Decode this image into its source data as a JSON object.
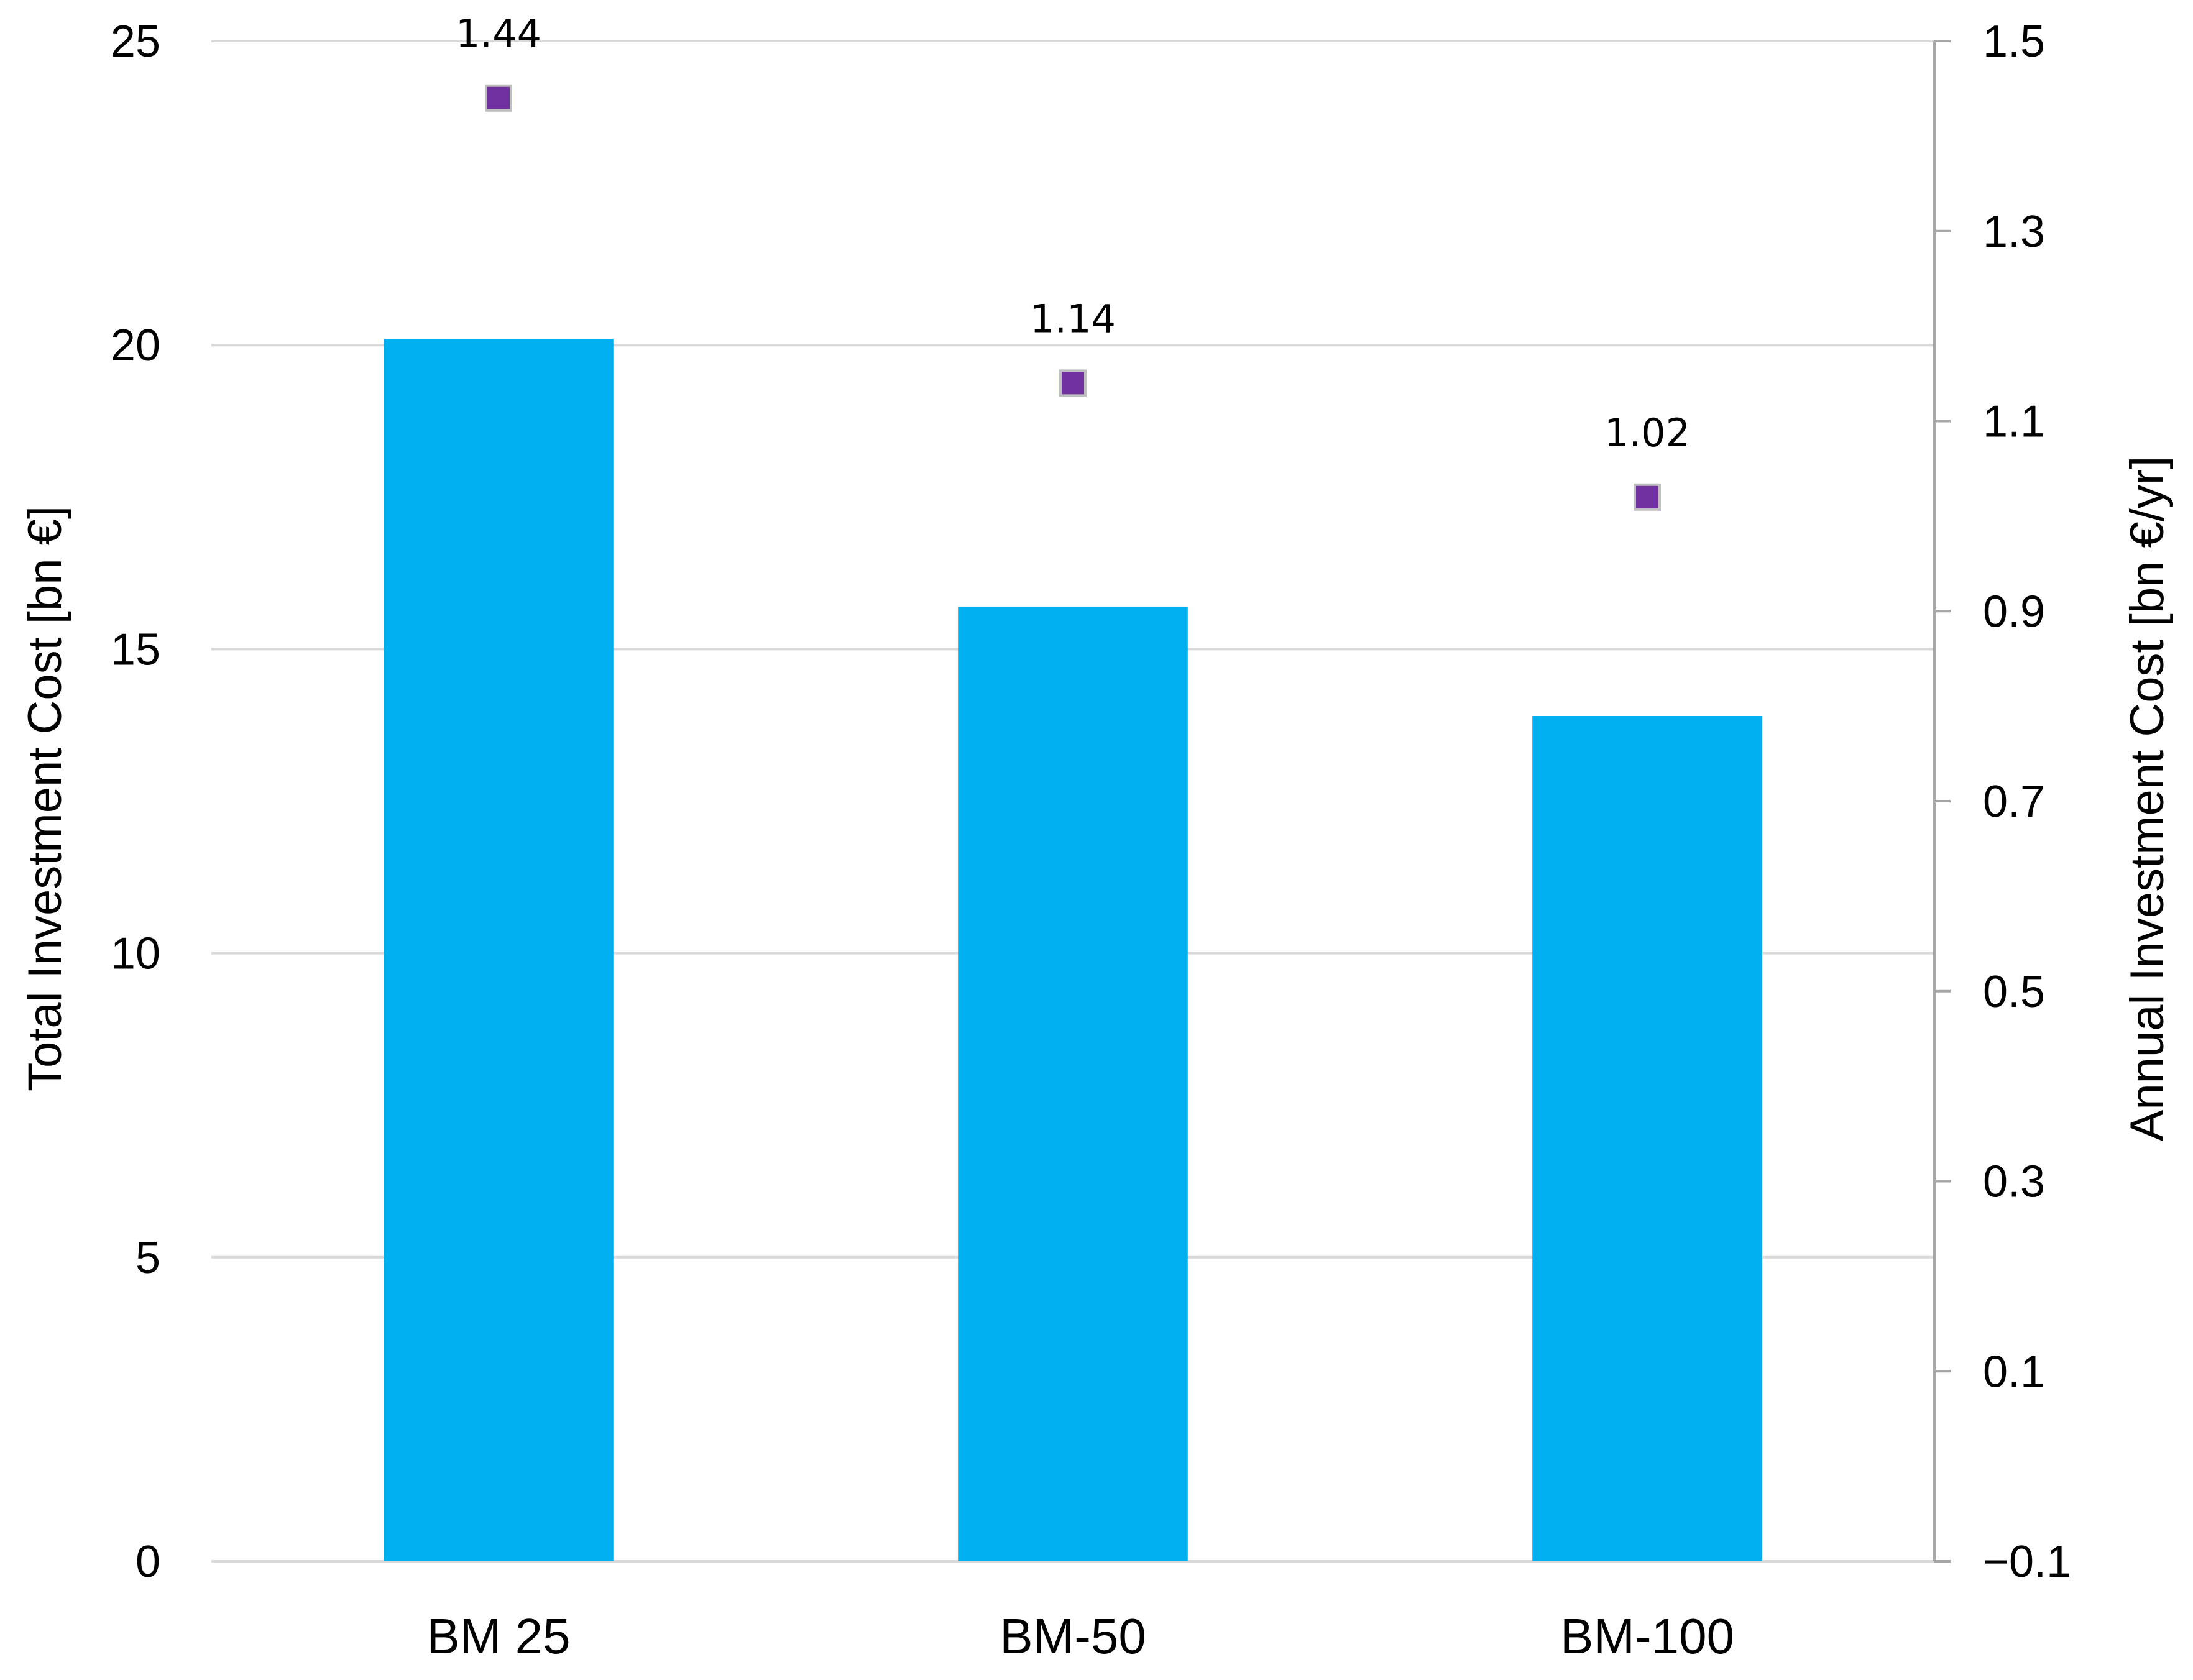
{
  "chart_data": {
    "type": "bar",
    "categories": [
      "BM 25",
      "BM-50",
      "BM-100"
    ],
    "series": [
      {
        "axis": "left",
        "type": "bar",
        "values": [
          20.1,
          15.7,
          13.9
        ],
        "color": "#00b0f0"
      },
      {
        "axis": "right",
        "type": "scatter",
        "values": [
          1.44,
          1.14,
          1.02
        ],
        "data_labels": [
          "1.44",
          "1.14",
          "1.02"
        ],
        "color": "#7030a0"
      }
    ],
    "y_left": {
      "label": "Total Investment Cost [bn €]",
      "ylim": [
        0,
        25
      ],
      "ticks": [
        0,
        5,
        10,
        15,
        20,
        25
      ],
      "tick_labels": [
        "0",
        "5",
        "10",
        "15",
        "20",
        "25"
      ]
    },
    "y_right": {
      "label": "Annual Investment Cost [bn €/yr]",
      "ylim": [
        -0.1,
        1.5
      ],
      "ticks": [
        -0.1,
        0.1,
        0.3,
        0.5,
        0.7,
        0.9,
        1.1,
        1.3,
        1.5
      ],
      "tick_labels": [
        "−0.1",
        "0.1",
        "0.3",
        "0.5",
        "0.7",
        "0.9",
        "1.1",
        "1.3",
        "1.5"
      ]
    },
    "grid": true,
    "legend": "none"
  }
}
